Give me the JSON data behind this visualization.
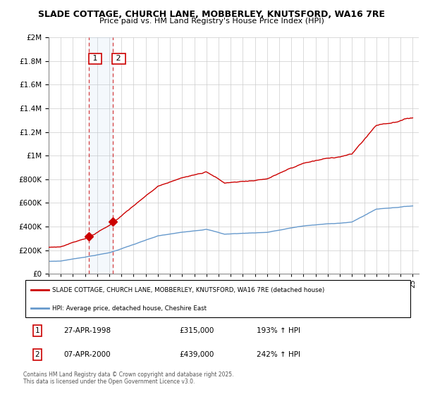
{
  "title": "SLADE COTTAGE, CHURCH LANE, MOBBERLEY, KNUTSFORD, WA16 7RE",
  "subtitle": "Price paid vs. HM Land Registry's House Price Index (HPI)",
  "legend_line1": "SLADE COTTAGE, CHURCH LANE, MOBBERLEY, KNUTSFORD, WA16 7RE (detached house)",
  "legend_line2": "HPI: Average price, detached house, Cheshire East",
  "footer": "Contains HM Land Registry data © Crown copyright and database right 2025.\nThis data is licensed under the Open Government Licence v3.0.",
  "sale1_label": "1",
  "sale1_date": "27-APR-1998",
  "sale1_price": "£315,000",
  "sale1_hpi": "193% ↑ HPI",
  "sale2_label": "2",
  "sale2_date": "07-APR-2000",
  "sale2_price": "£439,000",
  "sale2_hpi": "242% ↑ HPI",
  "red_color": "#cc0000",
  "blue_color": "#6699cc",
  "background_color": "#ffffff",
  "grid_color": "#cccccc",
  "ylim": [
    0,
    2000000
  ],
  "xlim_start": 1995.0,
  "xlim_end": 2025.5,
  "sale1_year": 1998.32,
  "sale2_year": 2000.27,
  "sale1_value": 315000,
  "sale2_value": 439000
}
